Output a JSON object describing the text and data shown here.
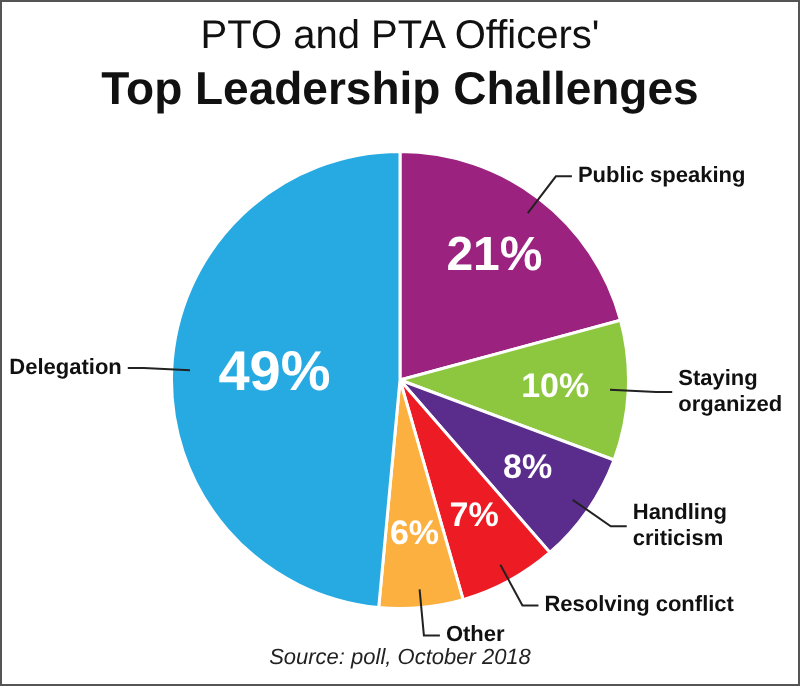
{
  "chart_data": {
    "type": "pie",
    "title": "PTO and PTA Officers'",
    "subtitle": "Top Leadership Challenges",
    "categories": [
      "Public speaking",
      "Staying organized",
      "Handling criticism",
      "Resolving conflict",
      "Other",
      "Delegation"
    ],
    "values": [
      21,
      10,
      8,
      7,
      6,
      49
    ],
    "colors": [
      "#9c2280",
      "#8dc63f",
      "#5a2d8c",
      "#ed1c24",
      "#fbb040",
      "#27aae1"
    ],
    "value_labels": [
      "21%",
      "10%",
      "8%",
      "7%",
      "6%",
      "49%"
    ],
    "legend": false,
    "annotations": [
      "Source: poll, October 2018"
    ]
  }
}
